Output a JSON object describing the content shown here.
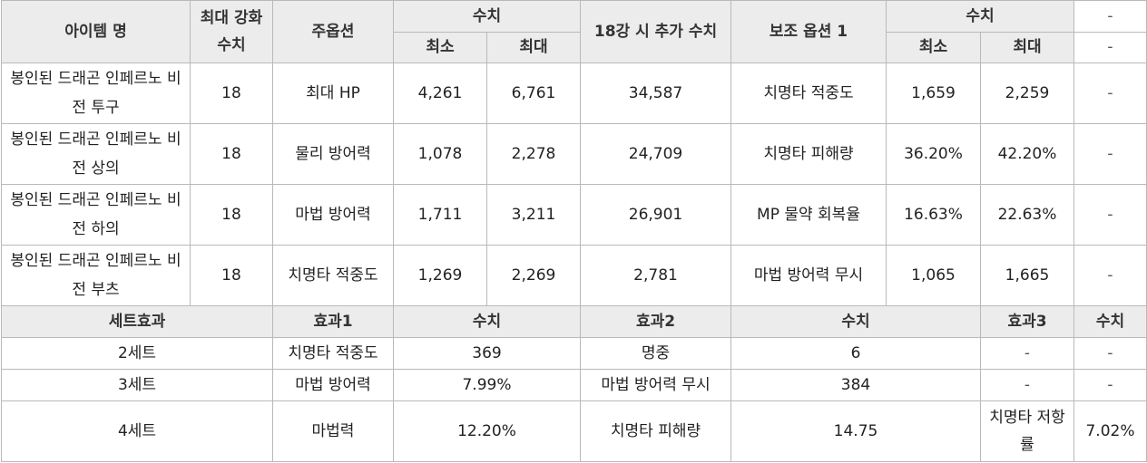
{
  "header": {
    "item_name": "아이템 명",
    "max_enhance": "최대 강화 수치",
    "main_option": "주옵션",
    "value": "수치",
    "min": "최소",
    "max": "최대",
    "bonus_18": "18강 시 추가 수치",
    "sub_option_1": "보조 옵션 1",
    "dash": "-"
  },
  "items": [
    {
      "name": "봉인된 드래곤 인페르노 비전 투구",
      "max_enhance": "18",
      "main_option": "최대 HP",
      "main_min": "4,261",
      "main_max": "6,761",
      "bonus_18": "34,587",
      "sub_option": "치명타 적중도",
      "sub_min": "1,659",
      "sub_max": "2,259",
      "extra": "-"
    },
    {
      "name": "봉인된 드래곤 인페르노 비전 상의",
      "max_enhance": "18",
      "main_option": "물리 방어력",
      "main_min": "1,078",
      "main_max": "2,278",
      "bonus_18": "24,709",
      "sub_option": "치명타 피해량",
      "sub_min": "36.20%",
      "sub_max": "42.20%",
      "extra": "-"
    },
    {
      "name": "봉인된 드래곤 인페르노 비전 하의",
      "max_enhance": "18",
      "main_option": "마법 방어력",
      "main_min": "1,711",
      "main_max": "3,211",
      "bonus_18": "26,901",
      "sub_option": "MP 물약 회복율",
      "sub_min": "16.63%",
      "sub_max": "22.63%",
      "extra": "-"
    },
    {
      "name": "봉인된 드래곤 인페르노 비전 부츠",
      "max_enhance": "18",
      "main_option": "치명타 적중도",
      "main_min": "1,269",
      "main_max": "2,269",
      "bonus_18": "2,781",
      "sub_option": "마법 방어력 무시",
      "sub_min": "1,065",
      "sub_max": "1,665",
      "extra": "-"
    }
  ],
  "set_header": {
    "set_effect": "세트효과",
    "effect1": "효과1",
    "value1": "수치",
    "effect2": "효과2",
    "value2": "수치",
    "effect3": "효과3",
    "value3": "수치"
  },
  "sets": [
    {
      "set": "2세트",
      "effect1": "치명타 적중도",
      "value1": "369",
      "effect2": "명중",
      "value2": "6",
      "effect3": "-",
      "value3": "-"
    },
    {
      "set": "3세트",
      "effect1": "마법 방어력",
      "value1": "7.99%",
      "effect2": "마법 방어력 무시",
      "value2": "384",
      "effect3": "-",
      "value3": "-"
    },
    {
      "set": "4세트",
      "effect1": "마법력",
      "value1": "12.20%",
      "effect2": "치명타 피해량",
      "value2": "14.75",
      "effect3": "치명타 저항률",
      "value3": "7.02%"
    }
  ]
}
